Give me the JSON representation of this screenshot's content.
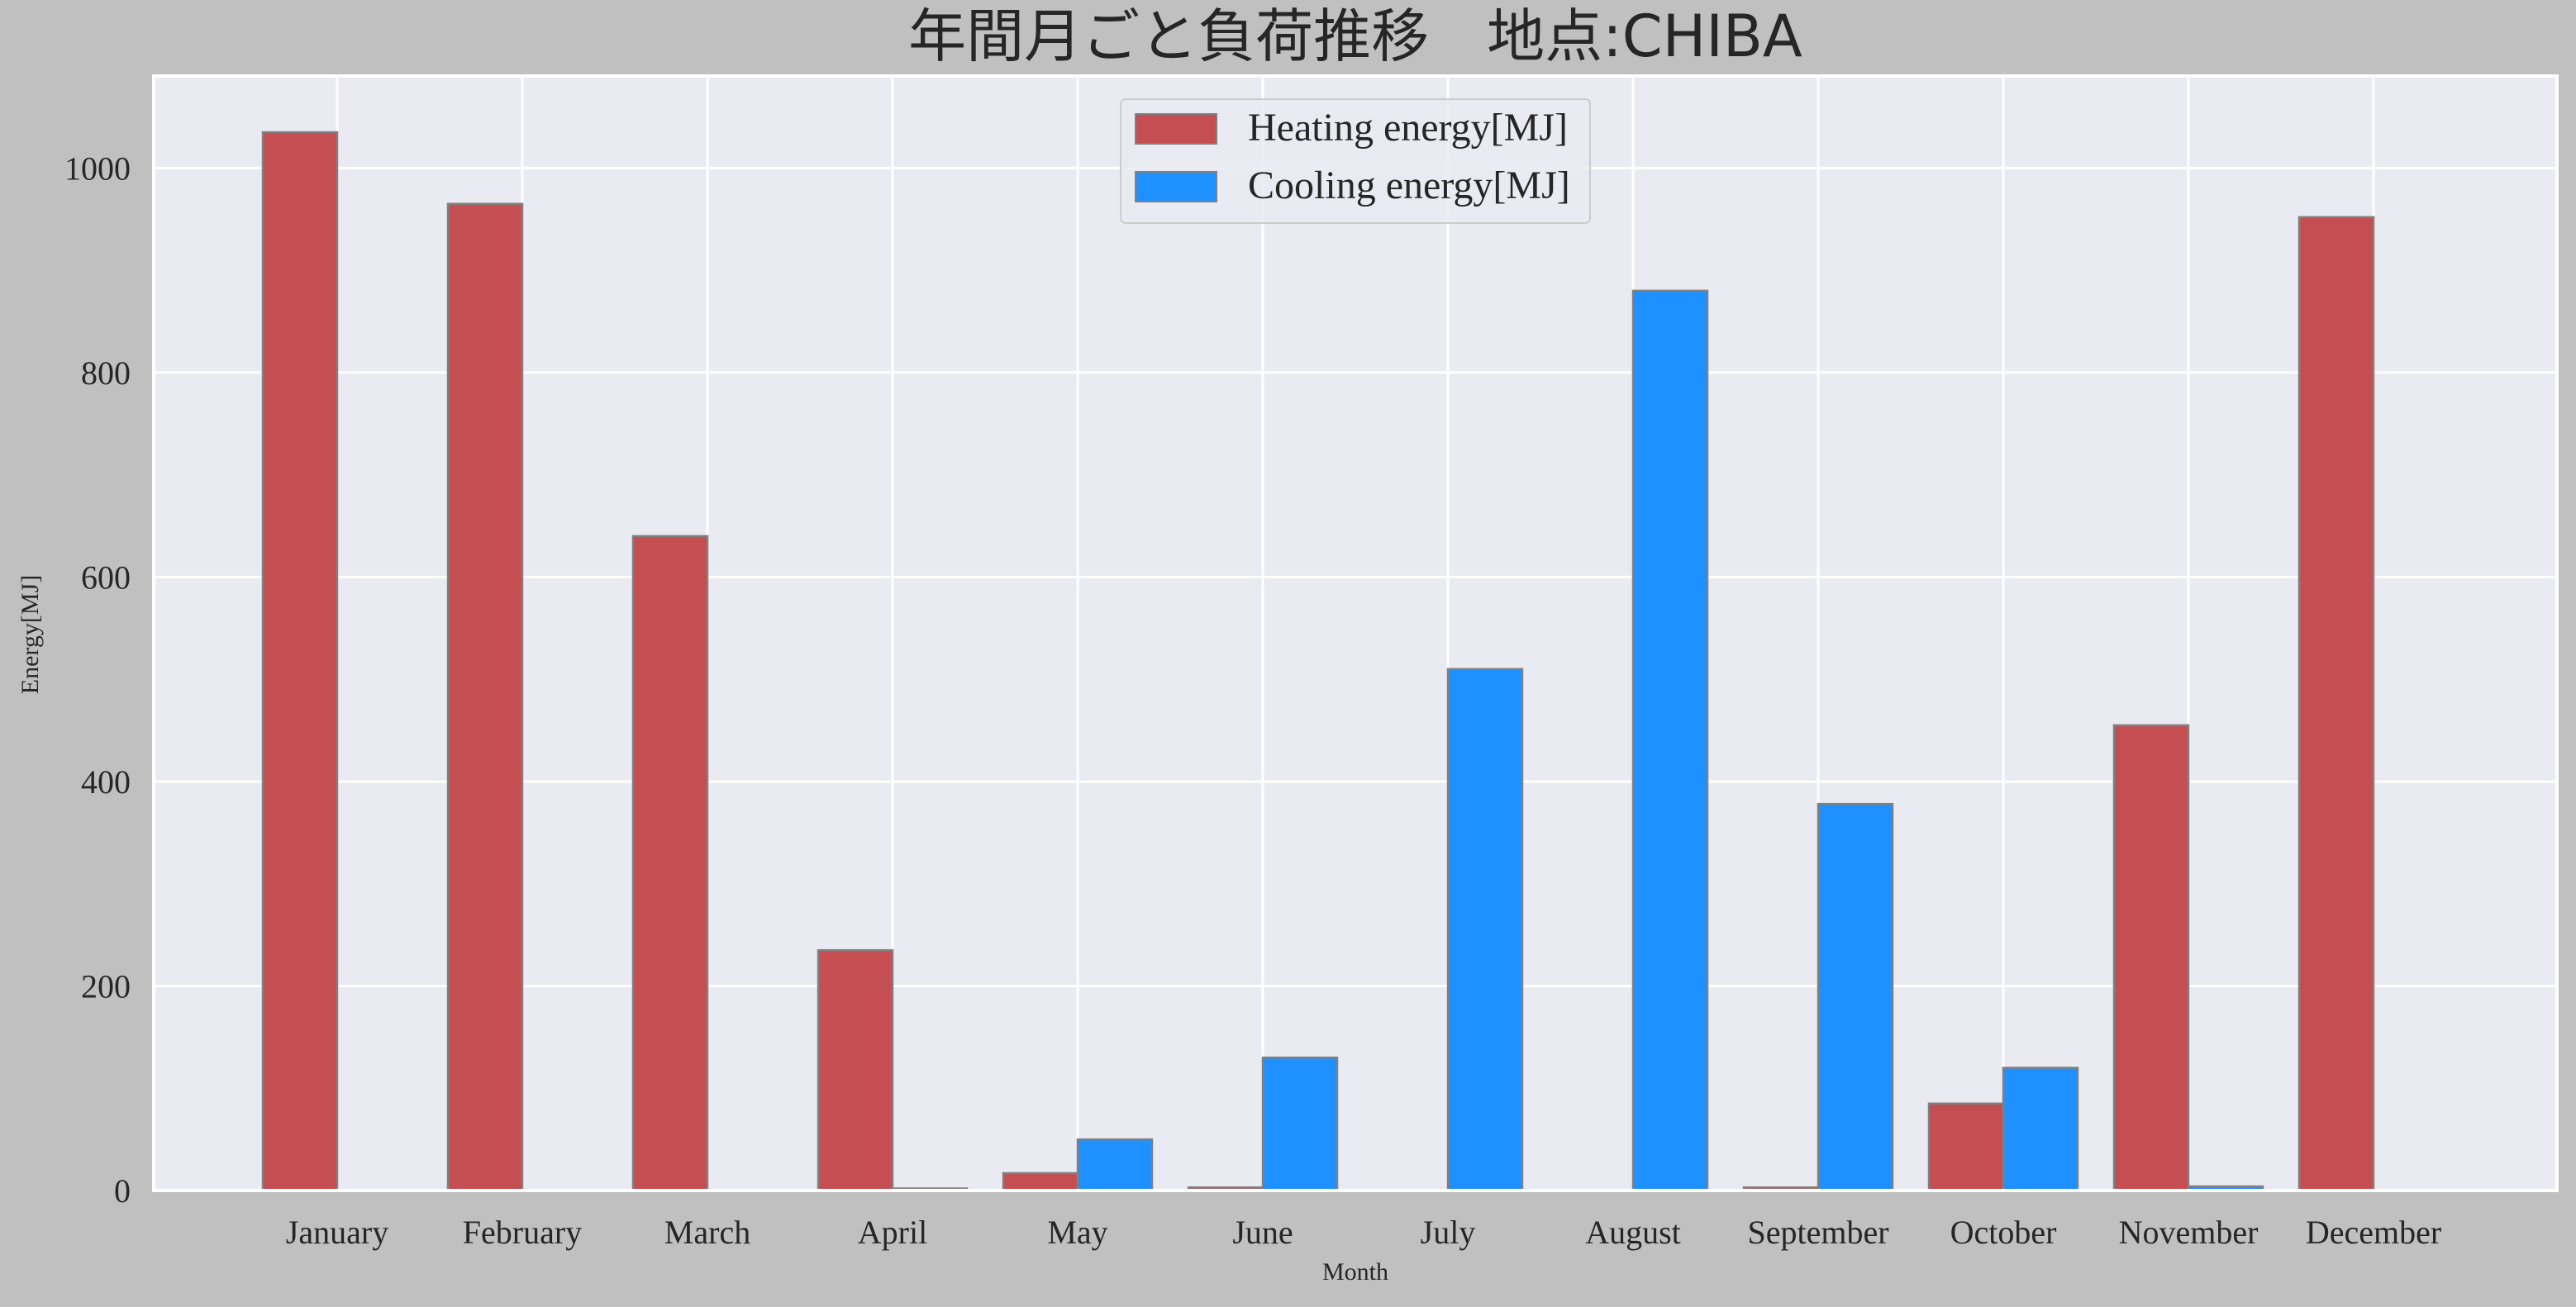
{
  "chart_data": {
    "type": "bar",
    "title": "年間月ごと負荷推移　地点:CHIBA",
    "xlabel": "Month",
    "ylabel": "Energy[MJ]",
    "categories": [
      "January",
      "February",
      "March",
      "April",
      "May",
      "June",
      "July",
      "August",
      "September",
      "October",
      "November",
      "December"
    ],
    "series": [
      {
        "name": "Heating energy[MJ]",
        "color": "#c44e52",
        "values": [
          1035,
          965,
          640,
          235,
          17,
          3,
          0,
          0,
          3,
          85,
          455,
          952
        ]
      },
      {
        "name": "Cooling energy[MJ]",
        "color": "#1e90ff",
        "values": [
          0,
          0,
          0,
          2,
          50,
          130,
          510,
          880,
          378,
          120,
          4,
          0
        ]
      }
    ],
    "ylim": [
      0,
      1090
    ],
    "yticks": [
      0,
      200,
      400,
      600,
      800,
      1000
    ],
    "grid": true,
    "legend_position": "top-center",
    "colors": {
      "figure_background": "#c0c0c0",
      "plot_background": "#eaeaf2",
      "grid": "#ffffff",
      "bar_edge": "#808080",
      "text": "#262626"
    }
  }
}
